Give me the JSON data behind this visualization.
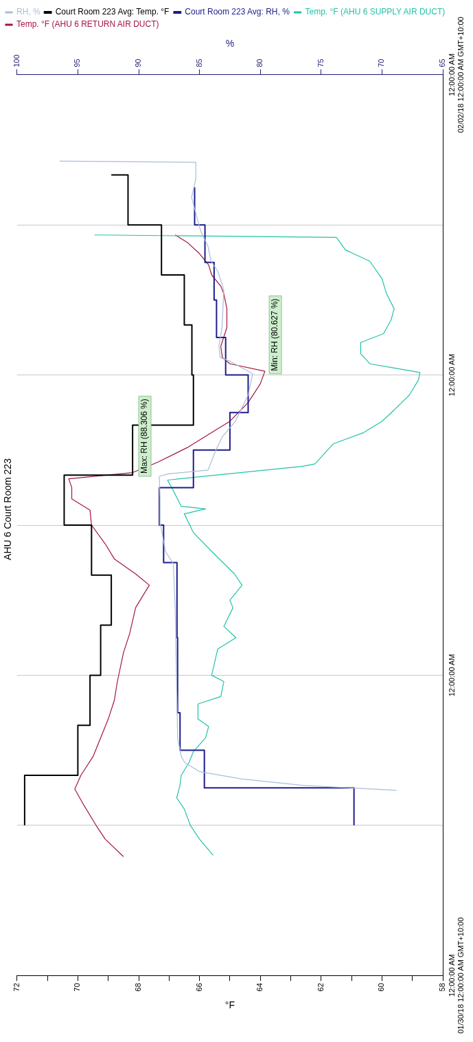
{
  "chart_data": {
    "type": "line",
    "orientation": "horizontal",
    "title": "AHU 6 Court Room 223",
    "xlabel": "°F",
    "x2label": "%",
    "ylim": [
      "--01-30T00:00",
      "--02-02T00:00"
    ],
    "yticks": [
      {
        "value": "--01-30T00:00",
        "label": "12:00:00 AM\n01/30/18 12:00:00 AM GMT+10:00"
      },
      {
        "value": "--01-30T12:00",
        "label": null
      },
      {
        "value": "--01-31T00:00",
        "label": "12:00:00 AM"
      },
      {
        "value": "--01-31T12:00",
        "label": null
      },
      {
        "value": "--02-01T00:00",
        "label": "12:00:00 AM"
      },
      {
        "value": "--02-01T12:00",
        "label": null
      },
      {
        "value": "--02-02T00:00",
        "label": "12:00:00 AM\n02/02/18 12:00:00 AM GMT+10:00"
      }
    ],
    "xlim": [
      72,
      58
    ],
    "xticks": [
      72,
      {
        "value": 71,
        "label": null
      },
      70,
      {
        "value": 69,
        "label": null
      },
      68,
      {
        "value": 67,
        "label": null
      },
      66,
      {
        "value": 65,
        "label": null
      },
      64,
      {
        "value": 63,
        "label": null
      },
      62,
      {
        "value": 61,
        "label": null
      },
      60,
      {
        "value": 59,
        "label": null
      },
      58
    ],
    "x2lim": [
      100,
      65
    ],
    "x2ticks": [
      100,
      95,
      90,
      85,
      80,
      75,
      70,
      65
    ],
    "grid": "y",
    "legend": "top left",
    "marker": "none",
    "line_style": "solid",
    "series": [
      {
        "name": "RH, %",
        "type": "line",
        "axis": "x2",
        "color": "#a9bddb",
        "x": [
          "--01-30T14:48",
          "--01-30T15:12",
          "--01-30T15:42",
          "--01-30T16:18",
          "--01-30T17:00",
          "--01-30T17:30",
          "--01-30T19:00",
          "--01-30T22:00",
          "--01-31T00:00",
          "--01-31T05:24",
          "--01-31T08:54",
          "--01-31T09:54",
          "--01-31T12:00",
          "--01-31T14:06",
          "--01-31T15:54",
          "--01-31T16:06",
          "--01-31T16:24",
          "--01-31T17:54",
          "--01-31T19:06",
          "--01-31T20:18",
          "--01-31T22:24",
          "--02-01T00:06",
          "--02-01T01:06",
          "--02-01T01:24",
          "--02-01T02:18",
          "--02-01T03:48",
          "--02-01T06:48",
          "--02-01T08:18",
          "--02-01T09:06",
          "--02-01T10:18",
          "--02-01T11:30",
          "--02-01T13:18",
          "--02-01T14:12",
          "--02-01T15:42",
          "--02-01T17:00",
          "--02-01T17:06"
        ],
        "values": [
          68.8,
          76.5,
          81.5,
          85.0,
          86.2,
          86.5,
          86.8,
          86.85,
          86.9,
          87.0,
          87.15,
          87.8,
          88.2,
          88.25,
          88.306,
          87.55,
          84.3,
          83.7,
          83.1,
          82.05,
          81.0,
          80.627,
          82.5,
          83.3,
          83.4,
          83.15,
          83.0,
          83.5,
          84.05,
          84.3,
          84.9,
          85.4,
          85.65,
          85.3,
          85.3,
          96.5
        ]
      },
      {
        "name": "Court Room 223 Avg: Temp. °F",
        "type": "step",
        "color": "#000000",
        "x": [
          "--01-30T12:00",
          "--01-30T16:00",
          "--01-30T20:00",
          "--01-31T00:00",
          "--01-31T04:00",
          "--01-31T08:00",
          "--01-31T12:00",
          "--01-31T16:00",
          "--01-31T20:00",
          "--02-01T00:00",
          "--02-01T04:00",
          "--02-01T08:00",
          "--02-01T12:00",
          "--02-01T16:00"
        ],
        "values": [
          71.75,
          70.0,
          69.6,
          69.25,
          68.9,
          69.55,
          70.45,
          68.2,
          66.2,
          66.25,
          66.5,
          67.25,
          68.35,
          68.9
        ]
      },
      {
        "name": "Court Room 223 Avg: RH, %",
        "type": "step",
        "axis": "x2",
        "color": "#1c1c8c",
        "x": [
          "--01-30T12:00",
          "--01-30T15:00",
          "--01-30T18:00",
          "--01-30T21:00",
          "--01-31T00:00",
          "--01-31T03:00",
          "--01-31T06:00",
          "--01-31T09:00",
          "--01-31T12:00",
          "--01-31T15:00",
          "--01-31T18:00",
          "--01-31T21:00",
          "--02-01T00:00",
          "--02-01T03:00",
          "--02-01T06:00",
          "--02-01T09:00",
          "--02-01T12:00",
          "--02-01T15:00"
        ],
        "values": [
          72.3,
          84.6,
          86.6,
          86.8,
          86.8,
          86.85,
          86.85,
          87.95,
          88.3,
          85.5,
          82.5,
          81.0,
          82.85,
          83.6,
          83.8,
          84.55,
          85.4,
          85.4
        ]
      },
      {
        "name": "Temp. °F (AHU 6 SUPPLY AIR DUCT)",
        "type": "line",
        "color": "#22c2a8",
        "x": [
          "--01-30T09:36",
          "--01-30T10:54",
          "--01-30T12:00",
          "--01-30T13:18",
          "--01-30T14:12",
          "--01-30T15:06",
          "--01-30T16:00",
          "--01-30T17:00",
          "--01-30T17:54",
          "--01-30T19:00",
          "--01-30T19:54",
          "--01-30T20:30",
          "--01-30T21:42",
          "--01-30T22:18",
          "--01-30T23:30",
          "--01-31T00:00",
          "--01-31T02:06",
          "--01-31T03:00",
          "--01-31T03:54",
          "--01-31T05:24",
          "--01-31T06:00",
          "--01-31T07:12",
          "--01-31T08:06",
          "--01-31T09:54",
          "--01-31T11:24",
          "--01-31T12:54",
          "--01-31T13:18",
          "--01-31T13:30",
          "--01-31T14:42",
          "--01-31T15:36",
          "--01-31T16:42",
          "--01-31T16:54",
          "--01-31T18:30",
          "--01-31T19:24",
          "--01-31T20:18",
          "--01-31T21:12",
          "--01-31T22:24",
          "--01-31T23:36",
          "--02-01T00:12",
          "--02-01T00:36",
          "--02-01T00:54",
          "--02-01T01:42",
          "--02-01T02:36",
          "--02-01T03:18",
          "--02-01T04:24",
          "--02-01T05:18",
          "--02-01T06:30",
          "--02-01T07:42",
          "--02-01T09:06",
          "--02-01T10:00",
          "--02-01T11:00",
          "--02-01T11:12"
        ],
        "values": [
          65.55,
          66.0,
          66.3,
          66.5,
          66.75,
          66.65,
          66.6,
          66.35,
          66.2,
          65.8,
          65.7,
          66.05,
          66.05,
          65.3,
          65.2,
          65.6,
          65.4,
          64.8,
          65.2,
          64.9,
          65.0,
          64.6,
          64.85,
          65.6,
          66.2,
          66.5,
          65.8,
          66.6,
          66.85,
          67.05,
          62.6,
          62.2,
          61.6,
          60.6,
          60.0,
          59.6,
          59.1,
          58.8,
          58.75,
          59.7,
          60.4,
          60.7,
          60.7,
          59.95,
          59.7,
          59.6,
          59.85,
          60.0,
          60.4,
          61.2,
          61.5,
          69.45
        ]
      },
      {
        "name": "Temp. °F (AHU 6 RETURN AIR DUCT)",
        "type": "line",
        "color": "#a3153f",
        "x": [
          "--01-30T09:30",
          "--01-30T10:54",
          "--01-30T12:00",
          "--01-30T13:36",
          "--01-30T14:54",
          "--01-30T16:00",
          "--01-30T17:30",
          "--01-30T19:00",
          "--01-30T20:30",
          "--01-30T22:00",
          "--01-30T23:30",
          "--01-31T01:48",
          "--01-31T03:18",
          "--01-31T05:24",
          "--01-31T07:12",
          "--01-31T08:06",
          "--01-31T09:18",
          "--01-31T10:30",
          "--01-31T12:00",
          "--01-31T13:12",
          "--01-31T14:06",
          "--01-31T15:00",
          "--01-31T15:42",
          "--01-31T16:12",
          "--01-31T17:00",
          "--01-31T18:12",
          "--01-31T19:24",
          "--01-31T20:18",
          "--01-31T21:48",
          "--01-31T23:18",
          "--02-01T00:18",
          "--02-01T00:54",
          "--02-01T01:24",
          "--02-01T02:18",
          "--02-01T03:48",
          "--02-01T05:18",
          "--02-01T06:30",
          "--02-01T07:06",
          "--02-01T08:00",
          "--02-01T08:48",
          "--02-01T09:42",
          "--02-01T10:36",
          "--02-01T11:12"
        ],
        "values": [
          68.5,
          69.1,
          69.4,
          69.8,
          70.1,
          69.9,
          69.5,
          69.25,
          69.0,
          68.8,
          68.7,
          68.5,
          68.3,
          68.1,
          67.65,
          68.1,
          68.8,
          69.1,
          69.55,
          69.6,
          70.2,
          70.2,
          70.3,
          68.2,
          67.4,
          66.4,
          65.6,
          65.0,
          64.4,
          64.0,
          63.85,
          65.0,
          65.25,
          65.3,
          65.1,
          65.1,
          65.2,
          65.3,
          65.6,
          65.7,
          66.0,
          66.4,
          66.8
        ]
      }
    ],
    "annotations": [
      "Max: RH (88.306 %)",
      "Min: RH (80.627 %)"
    ]
  }
}
